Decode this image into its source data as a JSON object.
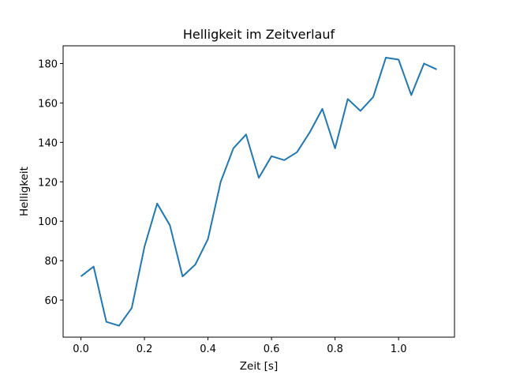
{
  "chart_data": {
    "type": "line",
    "title": "Helligkeit im Zeitverlauf",
    "xlabel": "Zeit [s]",
    "ylabel": "Helligkeit",
    "xlim": [
      -0.056,
      1.176
    ],
    "ylim": [
      41.2,
      189.0
    ],
    "xticks": [
      0.0,
      0.2,
      0.4,
      0.6,
      0.8,
      1.0
    ],
    "xtick_labels": [
      "0.0",
      "0.2",
      "0.4",
      "0.6",
      "0.8",
      "1.0"
    ],
    "yticks": [
      60,
      80,
      100,
      120,
      140,
      160,
      180
    ],
    "ytick_labels": [
      "60",
      "80",
      "100",
      "120",
      "140",
      "160",
      "180"
    ],
    "grid": false,
    "line_color": "#1f77b4",
    "series": [
      {
        "x": [
          0.0,
          0.04,
          0.08,
          0.12,
          0.16,
          0.2,
          0.24,
          0.28,
          0.32,
          0.36,
          0.4,
          0.44,
          0.48,
          0.52,
          0.56,
          0.6,
          0.64,
          0.68,
          0.72,
          0.76,
          0.8,
          0.84,
          0.88,
          0.92,
          0.96,
          1.0,
          1.04,
          1.08,
          1.12
        ],
        "y": [
          72,
          77,
          49,
          47,
          56,
          87,
          109,
          98,
          72,
          78,
          91,
          120,
          137,
          144,
          122,
          133,
          131,
          135,
          145,
          157,
          137,
          162,
          156,
          163,
          183,
          182,
          164,
          180,
          177
        ]
      }
    ]
  }
}
